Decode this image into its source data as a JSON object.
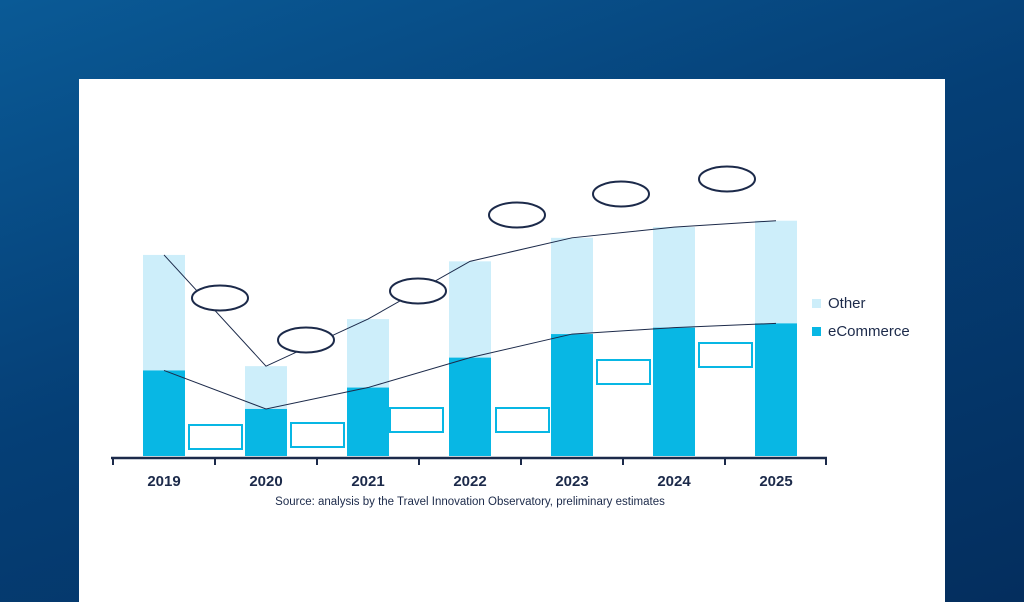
{
  "colors": {
    "other": "#cdeefa",
    "ecommerce": "#08b7e4",
    "axis": "#1c2a4a",
    "outline": "#1c2a4a",
    "box": "#08b7e4"
  },
  "chart_data": {
    "type": "bar",
    "stacked": true,
    "categories": [
      "2019",
      "2020",
      "2021",
      "2022",
      "2023",
      "2024",
      "2025"
    ],
    "series": [
      {
        "name": "eCommerce",
        "values": [
          40,
          22,
          32,
          46,
          57,
          60,
          62
        ]
      },
      {
        "name": "Other",
        "values": [
          54,
          20,
          32,
          45,
          45,
          47,
          48
        ]
      }
    ],
    "ylim": [
      0,
      115
    ],
    "legend": [
      "Other",
      "eCommerce"
    ],
    "legend_position": "right",
    "annotations": "blank oval labels for totals and blank boxes for eCommerce values",
    "source": "Source: analysis by the Travel Innovation Observatory, preliminary estimates"
  }
}
